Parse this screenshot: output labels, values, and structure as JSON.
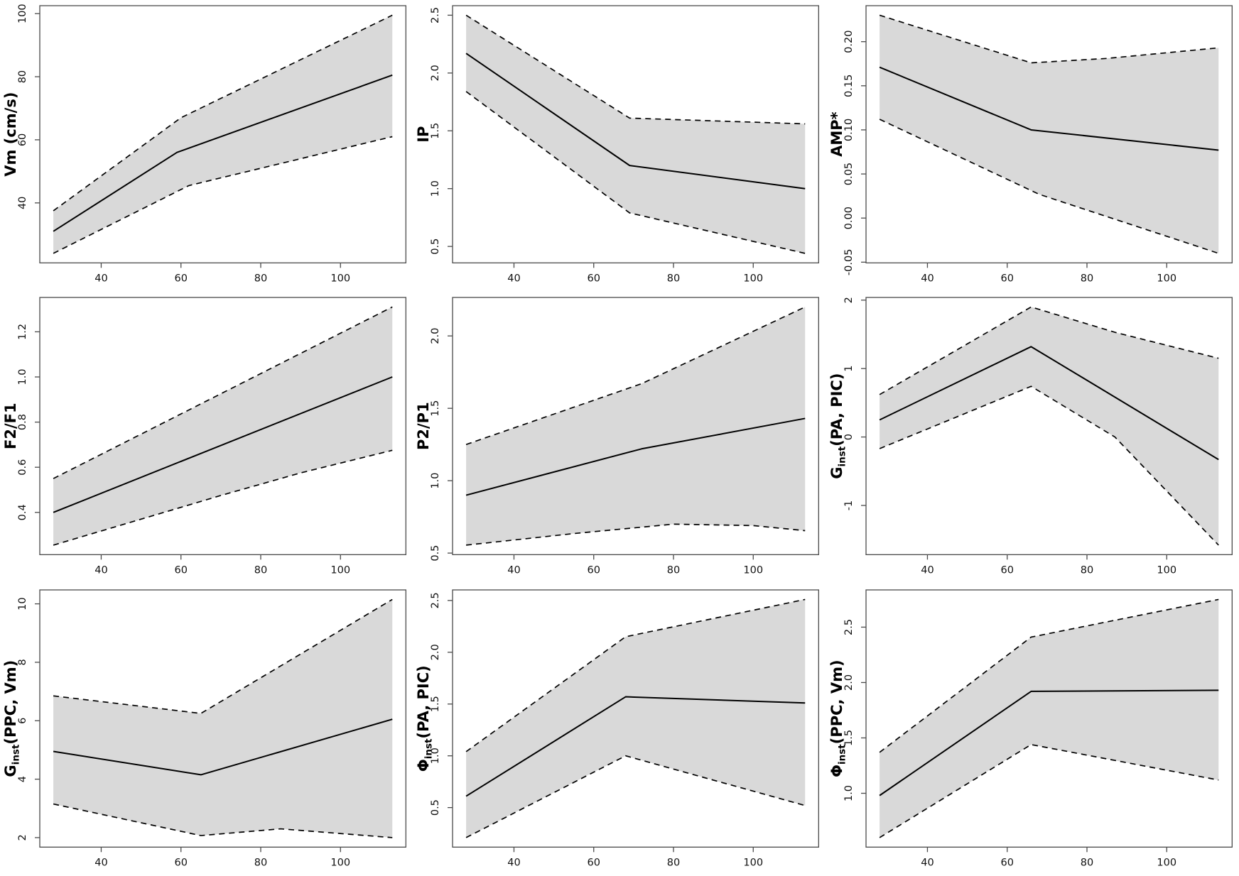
{
  "figure": {
    "layout": "3x3-grid-of-regression-plots",
    "background": "#ffffff",
    "band_color": "#d9d9d9",
    "solid_line_color": "#000000",
    "dashed_line_color": "#000000",
    "axis_color": "#4a4a4a",
    "tick_label_color": "#111111",
    "axis_title_color": "#000000"
  },
  "chart_data": [
    {
      "id": "vm",
      "type": "line",
      "title": "",
      "xlabel": "",
      "grid": false,
      "legend": "none",
      "ylabel": {
        "pre": "Vm (cm/s)",
        "sub": "",
        "post": ""
      },
      "x_ticks": [
        "40",
        "60",
        "80",
        "100"
      ],
      "y_ticks": [
        "40",
        "60",
        "80",
        "100"
      ],
      "x_range": [
        28,
        113
      ],
      "series": [
        {
          "name": "mean",
          "style": "solid",
          "x": [
            28,
            59,
            113
          ],
          "y": [
            31,
            56,
            80.5
          ]
        },
        {
          "name": "upper_ci",
          "style": "dashed",
          "x": [
            28,
            60,
            113
          ],
          "y": [
            37.5,
            67,
            99.5
          ]
        },
        {
          "name": "lower_ci",
          "style": "dashed",
          "x": [
            28,
            62,
            113
          ],
          "y": [
            24,
            45.5,
            61
          ]
        }
      ],
      "band": true
    },
    {
      "id": "ip",
      "type": "line",
      "title": "",
      "xlabel": "",
      "grid": false,
      "legend": "none",
      "ylabel": {
        "pre": "IP",
        "sub": "",
        "post": ""
      },
      "x_ticks": [
        "40",
        "60",
        "80",
        "100"
      ],
      "y_ticks": [
        "0.5",
        "1.0",
        "1.5",
        "2.0",
        "2.5"
      ],
      "x_range": [
        28,
        113
      ],
      "series": [
        {
          "name": "mean",
          "style": "solid",
          "x": [
            28,
            69,
            113
          ],
          "y": [
            2.17,
            1.2,
            1.0
          ]
        },
        {
          "name": "upper_ci",
          "style": "dashed",
          "x": [
            28,
            69,
            113
          ],
          "y": [
            2.5,
            1.61,
            1.56
          ]
        },
        {
          "name": "lower_ci",
          "style": "dashed",
          "x": [
            28,
            69,
            113
          ],
          "y": [
            1.84,
            0.79,
            0.44
          ]
        }
      ],
      "band": true
    },
    {
      "id": "amp",
      "type": "line",
      "title": "",
      "xlabel": "",
      "grid": false,
      "legend": "none",
      "ylabel": {
        "pre": "AMP*",
        "sub": "",
        "post": ""
      },
      "x_ticks": [
        "40",
        "60",
        "80",
        "100"
      ],
      "y_ticks": [
        "-0.05",
        "0.00",
        "0.05",
        "0.10",
        "0.15",
        "0.20"
      ],
      "x_range": [
        28,
        113
      ],
      "series": [
        {
          "name": "mean",
          "style": "solid",
          "x": [
            28,
            66,
            113
          ],
          "y": [
            0.171,
            0.1,
            0.077
          ]
        },
        {
          "name": "upper_ci",
          "style": "dashed",
          "x": [
            28,
            66,
            85,
            113
          ],
          "y": [
            0.23,
            0.176,
            0.181,
            0.193
          ]
        },
        {
          "name": "lower_ci",
          "style": "dashed",
          "x": [
            28,
            68,
            113
          ],
          "y": [
            0.112,
            0.027,
            -0.04
          ]
        }
      ],
      "band": true
    },
    {
      "id": "f2f1",
      "type": "line",
      "title": "",
      "xlabel": "",
      "grid": false,
      "legend": "none",
      "ylabel": {
        "pre": "F2/F1",
        "sub": "",
        "post": ""
      },
      "x_ticks": [
        "40",
        "60",
        "80",
        "100"
      ],
      "y_ticks": [
        "0.4",
        "0.6",
        "0.8",
        "1.0",
        "1.2"
      ],
      "x_range": [
        28,
        113
      ],
      "series": [
        {
          "name": "mean",
          "style": "solid",
          "x": [
            28,
            113
          ],
          "y": [
            0.4,
            1.0
          ]
        },
        {
          "name": "upper_ci",
          "style": "dashed",
          "x": [
            28,
            113
          ],
          "y": [
            0.55,
            1.31
          ]
        },
        {
          "name": "lower_ci",
          "style": "dashed",
          "x": [
            28,
            50,
            70,
            90,
            113
          ],
          "y": [
            0.255,
            0.37,
            0.475,
            0.575,
            0.675
          ]
        }
      ],
      "band": true
    },
    {
      "id": "p2p1",
      "type": "line",
      "title": "",
      "xlabel": "",
      "grid": false,
      "legend": "none",
      "ylabel": {
        "pre": "P2/P1",
        "sub": "",
        "post": ""
      },
      "x_ticks": [
        "40",
        "60",
        "80",
        "100"
      ],
      "y_ticks": [
        "0.5",
        "1.0",
        "1.5",
        "2.0"
      ],
      "x_range": [
        28,
        113
      ],
      "series": [
        {
          "name": "mean",
          "style": "solid",
          "x": [
            28,
            72,
            113
          ],
          "y": [
            0.9,
            1.22,
            1.43
          ]
        },
        {
          "name": "upper_ci",
          "style": "dashed",
          "x": [
            28,
            72,
            113
          ],
          "y": [
            1.25,
            1.67,
            2.2
          ]
        },
        {
          "name": "lower_ci",
          "style": "dashed",
          "x": [
            28,
            55,
            80,
            100,
            113
          ],
          "y": [
            0.555,
            0.635,
            0.7,
            0.69,
            0.655
          ]
        }
      ],
      "band": true
    },
    {
      "id": "g-pa-pic",
      "type": "line",
      "title": "",
      "xlabel": "",
      "grid": false,
      "legend": "none",
      "ylabel": {
        "pre": "G",
        "sub": "inst",
        "post": "(PA, PIC)"
      },
      "x_ticks": [
        "40",
        "60",
        "80",
        "100"
      ],
      "y_ticks": [
        "-1",
        "0",
        "1",
        "2"
      ],
      "x_range": [
        28,
        113
      ],
      "series": [
        {
          "name": "mean",
          "style": "solid",
          "x": [
            28,
            66,
            113
          ],
          "y": [
            0.25,
            1.32,
            -0.33
          ]
        },
        {
          "name": "upper_ci",
          "style": "dashed",
          "x": [
            28,
            66,
            87,
            113
          ],
          "y": [
            0.62,
            1.9,
            1.53,
            1.15
          ]
        },
        {
          "name": "lower_ci",
          "style": "dashed",
          "x": [
            28,
            66,
            87,
            113
          ],
          "y": [
            -0.17,
            0.74,
            0.0,
            -1.58
          ]
        }
      ],
      "band": true
    },
    {
      "id": "g-ppc-vm",
      "type": "line",
      "title": "",
      "xlabel": "",
      "grid": false,
      "legend": "none",
      "ylabel": {
        "pre": "G",
        "sub": "inst",
        "post": "(PPC, Vm)"
      },
      "x_ticks": [
        "40",
        "60",
        "80",
        "100"
      ],
      "y_ticks": [
        "2",
        "4",
        "6",
        "8",
        "10"
      ],
      "x_range": [
        28,
        113
      ],
      "series": [
        {
          "name": "mean",
          "style": "solid",
          "x": [
            28,
            65,
            113
          ],
          "y": [
            4.95,
            4.15,
            6.05
          ]
        },
        {
          "name": "upper_ci",
          "style": "dashed",
          "x": [
            28,
            65,
            113
          ],
          "y": [
            6.85,
            6.25,
            10.15
          ]
        },
        {
          "name": "lower_ci",
          "style": "dashed",
          "x": [
            28,
            65,
            85,
            113
          ],
          "y": [
            3.15,
            2.07,
            2.3,
            2.0
          ]
        }
      ],
      "band": true
    },
    {
      "id": "phi-pa-pic",
      "type": "line",
      "title": "",
      "xlabel": "",
      "grid": false,
      "legend": "none",
      "ylabel": {
        "pre": "Φ",
        "sub": "inst",
        "post": "(PA, PIC)"
      },
      "x_ticks": [
        "40",
        "60",
        "80",
        "100"
      ],
      "y_ticks": [
        "0.5",
        "1.0",
        "1.5",
        "2.0",
        "2.5"
      ],
      "x_range": [
        28,
        113
      ],
      "series": [
        {
          "name": "mean",
          "style": "solid",
          "x": [
            28,
            68,
            113
          ],
          "y": [
            0.61,
            1.57,
            1.51
          ]
        },
        {
          "name": "upper_ci",
          "style": "dashed",
          "x": [
            28,
            68,
            113
          ],
          "y": [
            1.04,
            2.15,
            2.51
          ]
        },
        {
          "name": "lower_ci",
          "style": "dashed",
          "x": [
            28,
            68,
            113
          ],
          "y": [
            0.21,
            1.0,
            0.52
          ]
        }
      ],
      "band": true
    },
    {
      "id": "phi-ppc-vm",
      "type": "line",
      "title": "",
      "xlabel": "",
      "grid": false,
      "legend": "none",
      "ylabel": {
        "pre": "Φ",
        "sub": "inst",
        "post": "(PPC, Vm)"
      },
      "x_ticks": [
        "40",
        "60",
        "80",
        "100"
      ],
      "y_ticks": [
        "1.0",
        "1.5",
        "2.0",
        "2.5"
      ],
      "x_range": [
        28,
        113
      ],
      "series": [
        {
          "name": "mean",
          "style": "solid",
          "x": [
            28,
            66,
            113
          ],
          "y": [
            0.98,
            1.92,
            1.93
          ]
        },
        {
          "name": "upper_ci",
          "style": "dashed",
          "x": [
            28,
            66,
            113
          ],
          "y": [
            1.37,
            2.41,
            2.75
          ]
        },
        {
          "name": "lower_ci",
          "style": "dashed",
          "x": [
            28,
            66,
            113
          ],
          "y": [
            0.6,
            1.44,
            1.12
          ]
        }
      ],
      "band": true
    }
  ]
}
